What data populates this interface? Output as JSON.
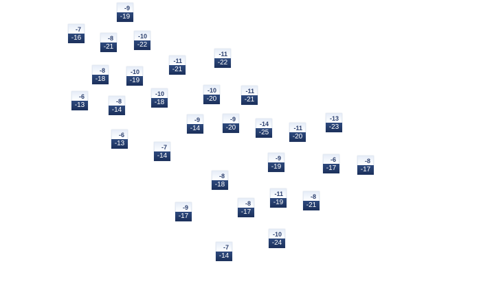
{
  "map": {
    "markers": [
      {
        "high": "-9",
        "low": "-19"
      },
      {
        "high": "-7",
        "low": "-16"
      },
      {
        "high": "-8",
        "low": "-21"
      },
      {
        "high": "-10",
        "low": "-22"
      },
      {
        "high": "-11",
        "low": "-21"
      },
      {
        "high": "-11",
        "low": "-22"
      },
      {
        "high": "-8",
        "low": "-18"
      },
      {
        "high": "-10",
        "low": "-19"
      },
      {
        "high": "-6",
        "low": "-13"
      },
      {
        "high": "-8",
        "low": "-14"
      },
      {
        "high": "-10",
        "low": "-18"
      },
      {
        "high": "-10",
        "low": "-20"
      },
      {
        "high": "-11",
        "low": "-21"
      },
      {
        "high": "-9",
        "low": "-14"
      },
      {
        "high": "-9",
        "low": "-20"
      },
      {
        "high": "-14",
        "low": "-25"
      },
      {
        "high": "-11",
        "low": "-20"
      },
      {
        "high": "-13",
        "low": "-23"
      },
      {
        "high": "-6",
        "low": "-13"
      },
      {
        "high": "-7",
        "low": "-14"
      },
      {
        "high": "-9",
        "low": "-19"
      },
      {
        "high": "-6",
        "low": "-17"
      },
      {
        "high": "-8",
        "low": "-17"
      },
      {
        "high": "-8",
        "low": "-18"
      },
      {
        "high": "-8",
        "low": "-17"
      },
      {
        "high": "-11",
        "low": "-19"
      },
      {
        "high": "-8",
        "low": "-21"
      },
      {
        "high": "-9",
        "low": "-17"
      },
      {
        "high": "-10",
        "low": "-24"
      },
      {
        "high": "-7",
        "low": "-14"
      }
    ]
  }
}
